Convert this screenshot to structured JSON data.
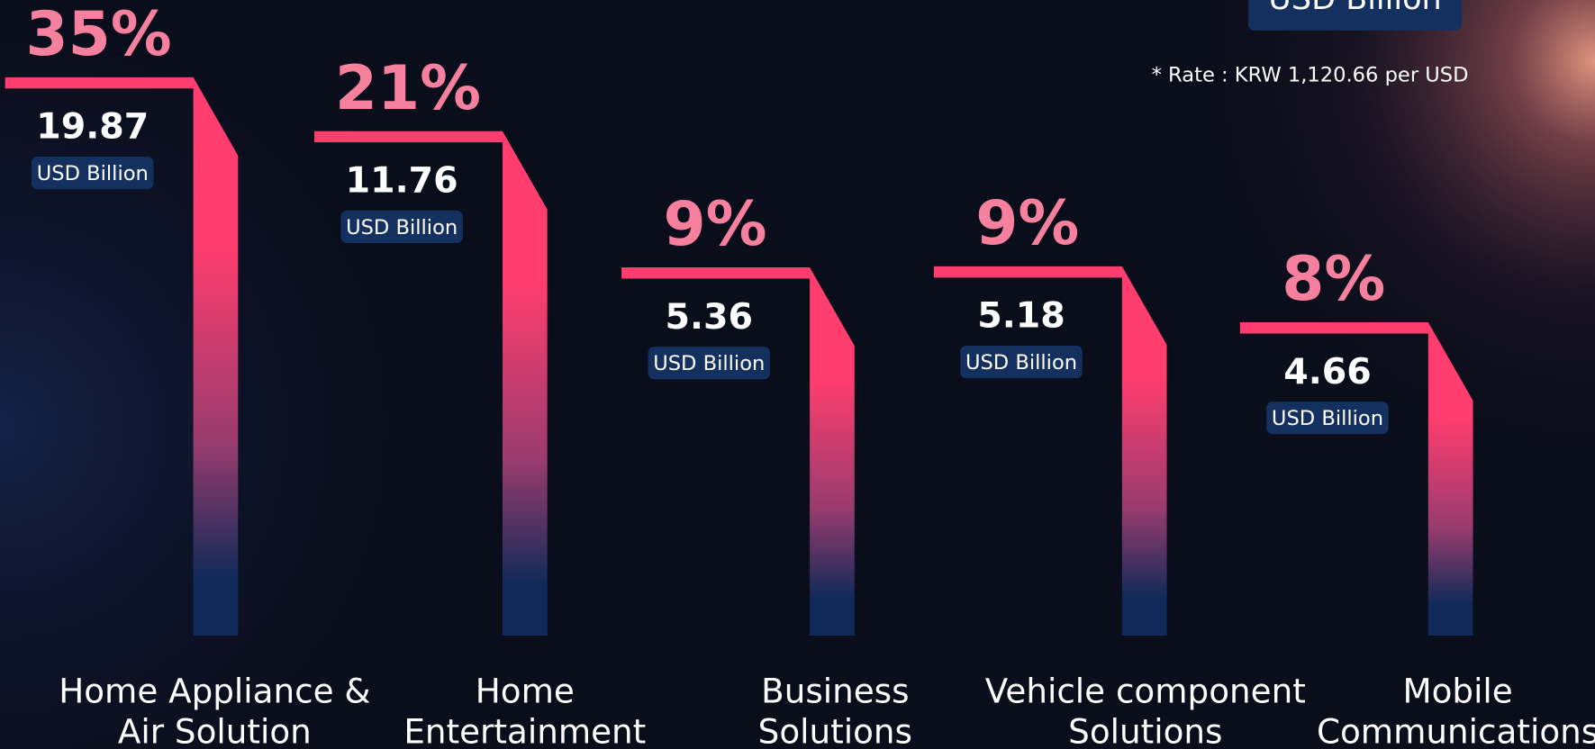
{
  "chart_data": {
    "type": "bar",
    "unit": "USD Billion",
    "note": "* Rate : KRW 1,120.66 per USD",
    "categories": [
      "Home Appliance &\nAir Solution",
      "Home\nEntertainment",
      "Business\nSolutions",
      "Vehicle component\nSolutions",
      "Mobile\nCommunications"
    ],
    "values": [
      19.87,
      11.76,
      5.36,
      5.18,
      4.66
    ],
    "shares": [
      35,
      21,
      9,
      9,
      8
    ],
    "share_labels": [
      "35%",
      "21%",
      "9%",
      "9%",
      "8%"
    ],
    "color": "#ff3d6e",
    "share_color": "#f7809f"
  }
}
